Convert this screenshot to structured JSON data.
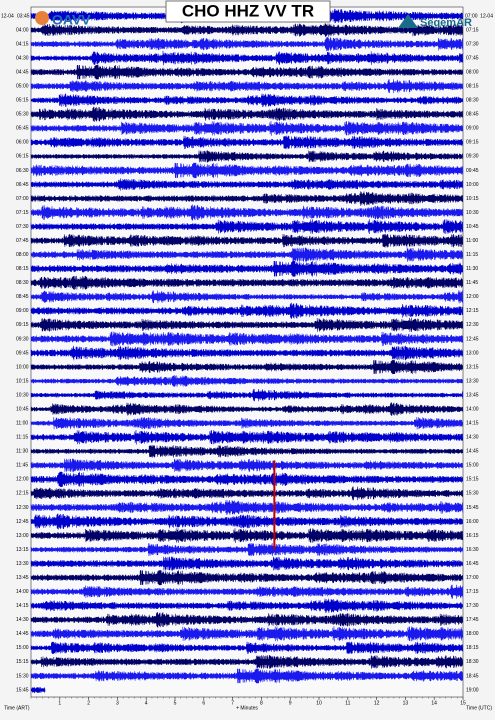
{
  "chart_data": {
    "type": "helicorder",
    "title": "CHO HHZ VV TR",
    "logo_left": "OAVV",
    "logo_right": "SegemAR",
    "left_date_label": "12-04",
    "right_date_label": "12-04",
    "left_times": [
      "03:45",
      "04:00",
      "04:15",
      "04:30",
      "04:45",
      "05:00",
      "05:15",
      "05:30",
      "05:45",
      "06:00",
      "06:15",
      "06:30",
      "06:45",
      "07:00",
      "07:15",
      "07:30",
      "07:45",
      "08:00",
      "08:15",
      "08:30",
      "08:45",
      "09:00",
      "09:15",
      "09:30",
      "09:45",
      "10:00",
      "10:15",
      "10:30",
      "10:45",
      "11:00",
      "11:15",
      "11:30",
      "11:45",
      "12:00",
      "12:15",
      "12:30",
      "12:45",
      "13:00",
      "13:15",
      "13:30",
      "13:45",
      "14:00",
      "14:15",
      "14:30",
      "14:45",
      "15:00",
      "15:15",
      "15:30",
      "15:45"
    ],
    "right_times": [
      "07:00",
      "07:15",
      "07:30",
      "07:45",
      "08:00",
      "08:15",
      "08:30",
      "08:45",
      "09:00",
      "09:15",
      "09:30",
      "09:45",
      "10:00",
      "10:15",
      "10:30",
      "10:45",
      "11:00",
      "11:15",
      "11:30",
      "11:45",
      "12:00",
      "12:15",
      "12:30",
      "12:45",
      "13:00",
      "13:15",
      "13:30",
      "13:45",
      "14:00",
      "14:15",
      "14:30",
      "14:45",
      "15:00",
      "15:15",
      "15:30",
      "15:45",
      "16:00",
      "16:15",
      "16:30",
      "16:45",
      "17:00",
      "17:15",
      "17:30",
      "17:45",
      "18:00",
      "18:15",
      "18:30",
      "18:45",
      "19:00"
    ],
    "xlabel": "+ Minutes",
    "left_axis_label": "Time (ART)",
    "right_axis_label": "Time (UTC)",
    "xlim": [
      0,
      15
    ],
    "xticks": [
      1,
      2,
      3,
      4,
      5,
      6,
      7,
      8,
      9,
      10,
      11,
      12,
      13,
      14,
      15
    ],
    "trace_colors": [
      "#0000cc",
      "#000066",
      "#1a1aee"
    ],
    "last_row_minutes": 0.5,
    "event": {
      "minute": 8.45,
      "rows": [
        32,
        38
      ],
      "color": "#c00000"
    }
  }
}
